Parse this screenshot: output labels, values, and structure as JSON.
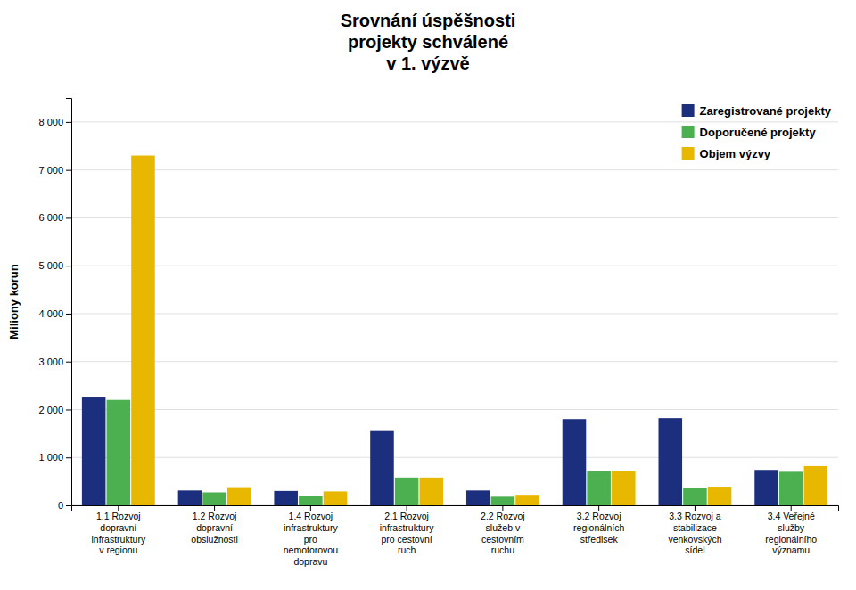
{
  "chart_data": {
    "type": "bar",
    "title": "Srovnání úspěšnosti\nprojekty schválené\nv 1. výzvě",
    "y_label": "Miliony korun",
    "categories": [
      "1.1 Rozvoj\ndopravní\ninfrastruktury\nv regionu",
      "1.2 Rozvoj\ndopravní\nobslužnosti",
      "1.4 Rozvoj\ninfrastruktury\npro\nnemotorovou\ndopravu",
      "2.1 Rozvoj\ninfrastruktury\npro cestovní\nruch",
      "2.2 Rozvoj\nslužeb v\ncestovním\nruchu",
      "3.2 Rozvoj\nregionálních\nstředisek",
      "3.3 Rozvoj a\nstabilizace\nvenkovských\nsídel",
      "3.4 Veřejné\nslužby\nregionálního\nvýznamu"
    ],
    "series": [
      {
        "name": "Zaregistrované projekty",
        "color": "#1c2f7e",
        "values": [
          2250,
          310,
          300,
          1550,
          310,
          1800,
          1820,
          740
        ]
      },
      {
        "name": "Doporučené projekty",
        "color": "#4caf50",
        "values": [
          2200,
          270,
          190,
          580,
          180,
          720,
          370,
          700
        ]
      },
      {
        "name": "Objem výzvy",
        "color": "#e8b800",
        "values": [
          7300,
          380,
          290,
          580,
          220,
          720,
          390,
          820
        ]
      }
    ],
    "ylim": [
      0,
      8500
    ],
    "yticks": [
      0,
      {
        "value": 1000,
        "label": "1 000"
      },
      {
        "value": 2000,
        "label": "2 000"
      },
      {
        "value": 3000,
        "label": "3 000"
      },
      {
        "value": 4000,
        "label": "4 000"
      },
      {
        "value": 5000,
        "label": "5 000"
      },
      {
        "value": 6000,
        "label": "6 000"
      },
      {
        "value": 7000,
        "label": "7 000"
      },
      {
        "value": 8000,
        "label": "8 000"
      }
    ],
    "grid": true,
    "legend": "upper right"
  }
}
